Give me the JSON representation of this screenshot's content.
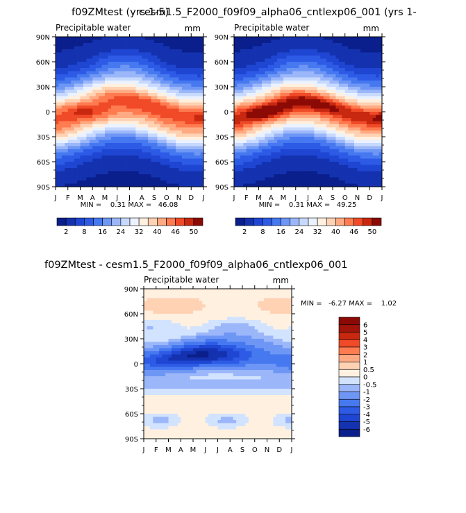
{
  "page": {
    "overlap_title_a": "f09ZMtest (yrs 1-5)",
    "overlap_title_b": "cesm1.5_F2000_f09f09_alpha06_cntlexp06_001 (yrs 1-",
    "bottom_title": "f09ZMtest - cesm1.5_F2000_f09f09_alpha06_cntlexp06_001"
  },
  "chart_data": [
    {
      "id": "panel-left",
      "type": "heatmap",
      "title": "Precipitable water",
      "units": "mm",
      "x_tick_labels": [
        "J",
        "F",
        "M",
        "A",
        "M",
        "J",
        "J",
        "A",
        "S",
        "O",
        "N",
        "D",
        "J"
      ],
      "y_tick_labels": [
        "90N",
        "60N",
        "30N",
        "0",
        "30S",
        "60S",
        "90S"
      ],
      "ylim": [
        -90,
        90
      ],
      "min_max_text": "MIN =    0.31 MAX =   46.08",
      "min": 0.31,
      "max": 46.08,
      "colorbar_labels": [
        "2",
        "8",
        "16",
        "24",
        "32",
        "40",
        "46",
        "50"
      ],
      "levels": [
        2,
        5,
        8,
        12,
        16,
        20,
        24,
        28,
        32,
        36,
        40,
        43,
        46,
        48,
        50
      ],
      "colors": [
        "#0a1f8c",
        "#1432b0",
        "#1e46d2",
        "#2d5be6",
        "#4678f0",
        "#6e96f5",
        "#9bb7fa",
        "#c8d9ff",
        "#eaf2ff",
        "#fff0e0",
        "#ffd2b4",
        "#ffaa82",
        "#ff7b50",
        "#f04a28",
        "#c8280f",
        "#8c0a05"
      ]
    },
    {
      "id": "panel-right",
      "type": "heatmap",
      "title": "Precipitable water",
      "units": "mm",
      "x_tick_labels": [
        "J",
        "F",
        "M",
        "A",
        "M",
        "J",
        "J",
        "A",
        "S",
        "O",
        "N",
        "D",
        "J"
      ],
      "y_tick_labels": [
        "90N",
        "60N",
        "30N",
        "0",
        "30S",
        "60S",
        "90S"
      ],
      "ylim": [
        -90,
        90
      ],
      "min_max_text": "MIN =    0.31 MAX =   49.25",
      "min": 0.31,
      "max": 49.25,
      "colorbar_labels": [
        "2",
        "8",
        "16",
        "24",
        "32",
        "40",
        "46",
        "50"
      ],
      "levels": [
        2,
        5,
        8,
        12,
        16,
        20,
        24,
        28,
        32,
        36,
        40,
        43,
        46,
        48,
        50
      ],
      "colors": [
        "#0a1f8c",
        "#1432b0",
        "#1e46d2",
        "#2d5be6",
        "#4678f0",
        "#6e96f5",
        "#9bb7fa",
        "#c8d9ff",
        "#eaf2ff",
        "#fff0e0",
        "#ffd2b4",
        "#ffaa82",
        "#ff7b50",
        "#f04a28",
        "#c8280f",
        "#8c0a05"
      ]
    },
    {
      "id": "panel-diff",
      "type": "heatmap",
      "title": "Precipitable water",
      "units": "mm",
      "x_tick_labels": [
        "J",
        "F",
        "M",
        "A",
        "M",
        "J",
        "J",
        "A",
        "S",
        "O",
        "N",
        "D",
        "J"
      ],
      "y_tick_labels": [
        "90N",
        "60N",
        "30N",
        "0",
        "30S",
        "60S",
        "90S"
      ],
      "ylim": [
        -90,
        90
      ],
      "min_max_text": "MIN =   -6.27 MAX =    1.02",
      "min": -6.27,
      "max": 1.02,
      "colorbar_labels": [
        "6",
        "5",
        "4",
        "3",
        "2",
        "1",
        "0.5",
        "0",
        "-0.5",
        "-1",
        "-2",
        "-3",
        "-4",
        "-5",
        "-6"
      ],
      "levels": [
        -6,
        -5,
        -4,
        -3,
        -2,
        -1,
        -0.5,
        0,
        0.5,
        1,
        2,
        3,
        4,
        5,
        6
      ],
      "colors": [
        "#0a1f8c",
        "#1432b0",
        "#1e46d2",
        "#2d5be6",
        "#4678f0",
        "#6e96f5",
        "#9bb7fa",
        "#d2e3ff",
        "#fff0e0",
        "#ffd2b4",
        "#ffaa82",
        "#ff7b50",
        "#f04a28",
        "#c8280f",
        "#a0140a",
        "#8c0a05"
      ]
    }
  ]
}
